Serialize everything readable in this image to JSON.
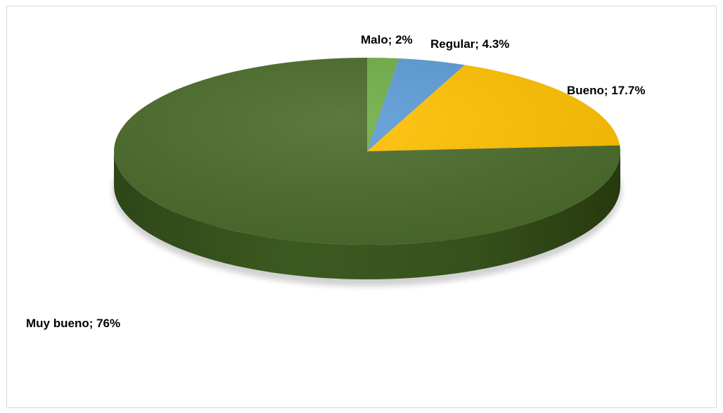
{
  "chart_data": {
    "type": "pie",
    "title": "",
    "style": "3d",
    "slices": [
      {
        "label": "Malo; 2%",
        "category": "Malo",
        "value": 2,
        "color": "#70ad47"
      },
      {
        "label": "Regular; 4.3%",
        "category": "Regular",
        "value": 4.3,
        "color": "#5b9bd5"
      },
      {
        "label": "Bueno; 17.7%",
        "category": "Bueno",
        "value": 17.7,
        "color": "#ffc000"
      },
      {
        "label": "Muy bueno; 76%",
        "category": "Muy bueno",
        "value": 76,
        "color": "#4a6b2a"
      }
    ],
    "legend": "none"
  }
}
